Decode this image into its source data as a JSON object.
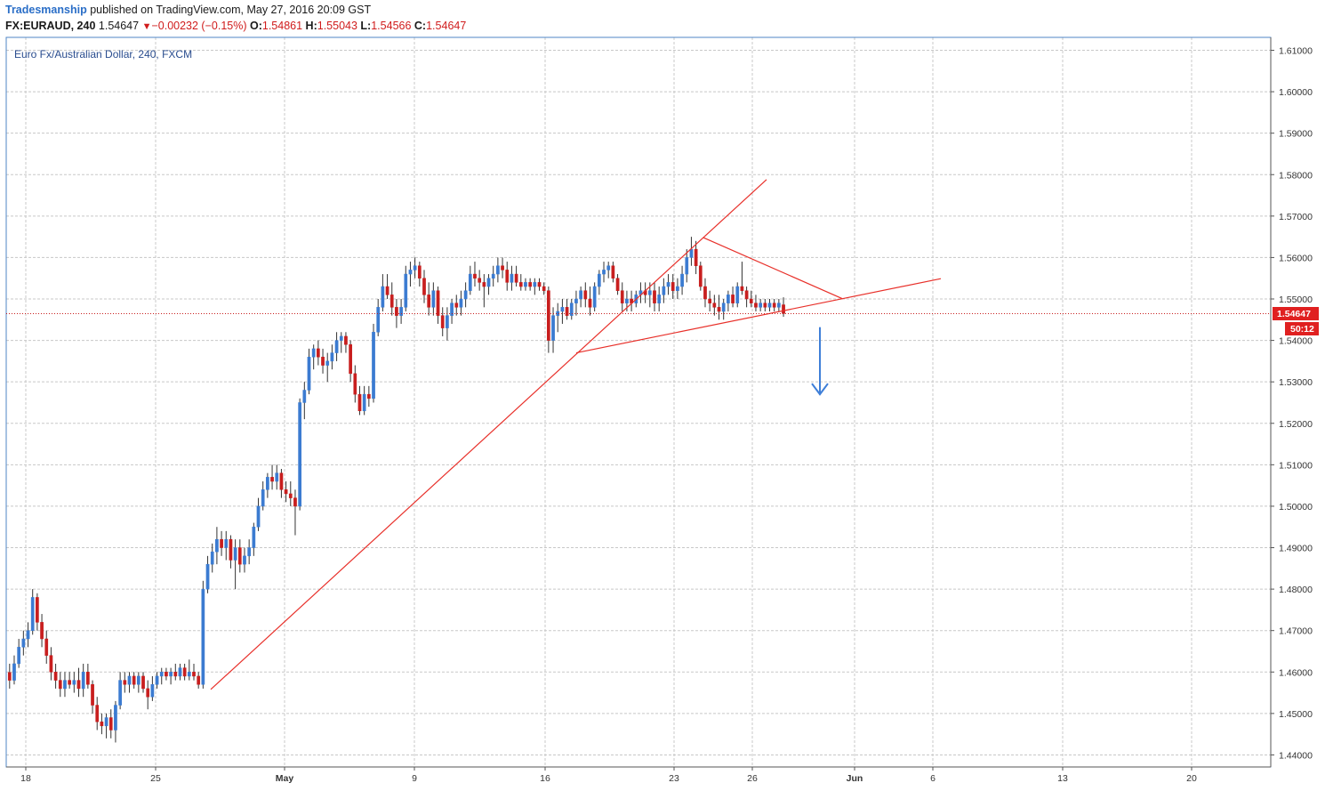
{
  "header": {
    "author": "Tradesmanship",
    "published_text": "published on TradingView.com, May 27, 2016 20:09 GST",
    "symbol_interval": "FX:EURAUD, 240",
    "last_price": "1.54647",
    "change": "−0.00232 (−0.15%)",
    "open_label": "O:",
    "open": "1.54861",
    "high_label": "H:",
    "high": "1.55043",
    "low_label": "L:",
    "low": "1.54566",
    "close_label": "C:",
    "close": "1.54647"
  },
  "pane_title": "Euro Fx/Australian Dollar, 240, FXCM",
  "price_tag": {
    "price": "1.54647",
    "countdown": "50:12"
  },
  "colors": {
    "up": "#3b7bd1",
    "down": "#c81e1e",
    "grid": "#c8c8c8",
    "trendline": "#e8302a",
    "arrow": "#3f7fd8",
    "price_line": "#c81e1e"
  },
  "chart_data": {
    "type": "candlestick",
    "symbol": "FX:EURAUD",
    "interval": "240",
    "y_ticks": [
      "1.61000",
      "1.60000",
      "1.59000",
      "1.58000",
      "1.57000",
      "1.56000",
      "1.55000",
      "1.54000",
      "1.53000",
      "1.52000",
      "1.51000",
      "1.50000",
      "1.49000",
      "1.48000",
      "1.47000",
      "1.46000",
      "1.45000",
      "1.44000"
    ],
    "ylim": [
      1.4385,
      1.6135
    ],
    "x_ticks": [
      "18",
      "25",
      "May",
      "9",
      "16",
      "23",
      "26",
      "Jun",
      "6",
      "13",
      "20"
    ],
    "candles": [
      [
        1.4599,
        1.462,
        1.456,
        1.458
      ],
      [
        1.458,
        1.464,
        1.457,
        1.462
      ],
      [
        1.462,
        1.468,
        1.461,
        1.466
      ],
      [
        1.466,
        1.47,
        1.464,
        1.468
      ],
      [
        1.468,
        1.472,
        1.466,
        1.47
      ],
      [
        1.47,
        1.48,
        1.469,
        1.478
      ],
      [
        1.478,
        1.479,
        1.47,
        1.472
      ],
      [
        1.472,
        1.474,
        1.466,
        1.468
      ],
      [
        1.468,
        1.47,
        1.462,
        1.464
      ],
      [
        1.464,
        1.466,
        1.458,
        1.46
      ],
      [
        1.46,
        1.462,
        1.456,
        1.458
      ],
      [
        1.458,
        1.46,
        1.454,
        1.456
      ],
      [
        1.456,
        1.46,
        1.454,
        1.458
      ],
      [
        1.458,
        1.46,
        1.456,
        1.457
      ],
      [
        1.457,
        1.46,
        1.455,
        1.458
      ],
      [
        1.458,
        1.461,
        1.454,
        1.456
      ],
      [
        1.456,
        1.462,
        1.454,
        1.46
      ],
      [
        1.46,
        1.462,
        1.456,
        1.457
      ],
      [
        1.457,
        1.458,
        1.45,
        1.452
      ],
      [
        1.452,
        1.454,
        1.446,
        1.448
      ],
      [
        1.448,
        1.45,
        1.445,
        1.447
      ],
      [
        1.447,
        1.45,
        1.444,
        1.449
      ],
      [
        1.449,
        1.451,
        1.444,
        1.446
      ],
      [
        1.446,
        1.453,
        1.443,
        1.452
      ],
      [
        1.452,
        1.46,
        1.451,
        1.458
      ],
      [
        1.458,
        1.46,
        1.455,
        1.457
      ],
      [
        1.457,
        1.46,
        1.455,
        1.459
      ],
      [
        1.459,
        1.46,
        1.456,
        1.457
      ],
      [
        1.457,
        1.46,
        1.455,
        1.459
      ],
      [
        1.459,
        1.46,
        1.455,
        1.456
      ],
      [
        1.456,
        1.458,
        1.451,
        1.454
      ],
      [
        1.454,
        1.459,
        1.453,
        1.457
      ],
      [
        1.457,
        1.46,
        1.456,
        1.459
      ],
      [
        1.459,
        1.461,
        1.457,
        1.46
      ],
      [
        1.46,
        1.461,
        1.458,
        1.459
      ],
      [
        1.459,
        1.461,
        1.457,
        1.46
      ],
      [
        1.46,
        1.462,
        1.458,
        1.459
      ],
      [
        1.459,
        1.462,
        1.458,
        1.461
      ],
      [
        1.461,
        1.462,
        1.458,
        1.459
      ],
      [
        1.459,
        1.463,
        1.458,
        1.46
      ],
      [
        1.46,
        1.462,
        1.458,
        1.459
      ],
      [
        1.459,
        1.46,
        1.456,
        1.457
      ],
      [
        1.457,
        1.482,
        1.456,
        1.48
      ],
      [
        1.48,
        1.488,
        1.479,
        1.486
      ],
      [
        1.486,
        1.491,
        1.484,
        1.489
      ],
      [
        1.489,
        1.495,
        1.486,
        1.492
      ],
      [
        1.492,
        1.494,
        1.488,
        1.49
      ],
      [
        1.49,
        1.494,
        1.487,
        1.492
      ],
      [
        1.492,
        1.493,
        1.485,
        1.487
      ],
      [
        1.487,
        1.492,
        1.48,
        1.49
      ],
      [
        1.49,
        1.492,
        1.484,
        1.486
      ],
      [
        1.486,
        1.49,
        1.484,
        1.488
      ],
      [
        1.488,
        1.492,
        1.486,
        1.49
      ],
      [
        1.49,
        1.496,
        1.488,
        1.495
      ],
      [
        1.495,
        1.502,
        1.494,
        1.5
      ],
      [
        1.5,
        1.506,
        1.499,
        1.504
      ],
      [
        1.504,
        1.508,
        1.502,
        1.507
      ],
      [
        1.507,
        1.51,
        1.504,
        1.506
      ],
      [
        1.506,
        1.51,
        1.504,
        1.508
      ],
      [
        1.508,
        1.509,
        1.502,
        1.504
      ],
      [
        1.504,
        1.506,
        1.501,
        1.503
      ],
      [
        1.503,
        1.506,
        1.5,
        1.502
      ],
      [
        1.502,
        1.504,
        1.493,
        1.5
      ],
      [
        1.5,
        1.526,
        1.499,
        1.525
      ],
      [
        1.525,
        1.53,
        1.521,
        1.528
      ],
      [
        1.528,
        1.538,
        1.527,
        1.536
      ],
      [
        1.536,
        1.539,
        1.533,
        1.538
      ],
      [
        1.538,
        1.54,
        1.534,
        1.536
      ],
      [
        1.536,
        1.538,
        1.532,
        1.534
      ],
      [
        1.534,
        1.537,
        1.53,
        1.535
      ],
      [
        1.535,
        1.539,
        1.533,
        1.537
      ],
      [
        1.537,
        1.542,
        1.535,
        1.54
      ],
      [
        1.54,
        1.542,
        1.537,
        1.541
      ],
      [
        1.541,
        1.542,
        1.537,
        1.539
      ],
      [
        1.539,
        1.54,
        1.53,
        1.532
      ],
      [
        1.532,
        1.534,
        1.525,
        1.527
      ],
      [
        1.527,
        1.529,
        1.522,
        1.523
      ],
      [
        1.523,
        1.529,
        1.522,
        1.527
      ],
      [
        1.527,
        1.529,
        1.524,
        1.526
      ],
      [
        1.526,
        1.544,
        1.525,
        1.542
      ],
      [
        1.542,
        1.55,
        1.541,
        1.548
      ],
      [
        1.548,
        1.556,
        1.547,
        1.553
      ],
      [
        1.553,
        1.556,
        1.55,
        1.551
      ],
      [
        1.551,
        1.554,
        1.546,
        1.548
      ],
      [
        1.548,
        1.55,
        1.543,
        1.546
      ],
      [
        1.546,
        1.55,
        1.544,
        1.548
      ],
      [
        1.548,
        1.558,
        1.547,
        1.556
      ],
      [
        1.556,
        1.559,
        1.553,
        1.557
      ],
      [
        1.557,
        1.56,
        1.555,
        1.558
      ],
      [
        1.558,
        1.559,
        1.553,
        1.555
      ],
      [
        1.555,
        1.557,
        1.549,
        1.551
      ],
      [
        1.551,
        1.554,
        1.546,
        1.548
      ],
      [
        1.548,
        1.554,
        1.546,
        1.552
      ],
      [
        1.552,
        1.553,
        1.544,
        1.546
      ],
      [
        1.546,
        1.548,
        1.541,
        1.543
      ],
      [
        1.543,
        1.548,
        1.54,
        1.546
      ],
      [
        1.546,
        1.55,
        1.544,
        1.549
      ],
      [
        1.549,
        1.551,
        1.546,
        1.548
      ],
      [
        1.548,
        1.552,
        1.546,
        1.55
      ],
      [
        1.55,
        1.554,
        1.548,
        1.552
      ],
      [
        1.552,
        1.558,
        1.551,
        1.556
      ],
      [
        1.556,
        1.559,
        1.553,
        1.555
      ],
      [
        1.555,
        1.557,
        1.552,
        1.554
      ],
      [
        1.554,
        1.556,
        1.548,
        1.553
      ],
      [
        1.553,
        1.556,
        1.551,
        1.555
      ],
      [
        1.555,
        1.558,
        1.553,
        1.556
      ],
      [
        1.556,
        1.56,
        1.554,
        1.558
      ],
      [
        1.558,
        1.56,
        1.555,
        1.557
      ],
      [
        1.557,
        1.559,
        1.552,
        1.554
      ],
      [
        1.554,
        1.558,
        1.552,
        1.556
      ],
      [
        1.556,
        1.558,
        1.553,
        1.554
      ],
      [
        1.554,
        1.556,
        1.552,
        1.553
      ],
      [
        1.553,
        1.555,
        1.552,
        1.554
      ],
      [
        1.554,
        1.555,
        1.552,
        1.553
      ],
      [
        1.553,
        1.555,
        1.551,
        1.554
      ],
      [
        1.554,
        1.555,
        1.552,
        1.553
      ],
      [
        1.553,
        1.554,
        1.551,
        1.552
      ],
      [
        1.552,
        1.553,
        1.537,
        1.54
      ],
      [
        1.54,
        1.548,
        1.537,
        1.546
      ],
      [
        1.546,
        1.549,
        1.542,
        1.547
      ],
      [
        1.547,
        1.55,
        1.544,
        1.548
      ],
      [
        1.548,
        1.55,
        1.545,
        1.546
      ],
      [
        1.546,
        1.55,
        1.545,
        1.549
      ],
      [
        1.549,
        1.552,
        1.546,
        1.55
      ],
      [
        1.55,
        1.553,
        1.548,
        1.552
      ],
      [
        1.552,
        1.554,
        1.548,
        1.55
      ],
      [
        1.55,
        1.553,
        1.546,
        1.548
      ],
      [
        1.548,
        1.554,
        1.547,
        1.553
      ],
      [
        1.553,
        1.557,
        1.551,
        1.556
      ],
      [
        1.556,
        1.559,
        1.554,
        1.557
      ],
      [
        1.557,
        1.559,
        1.555,
        1.558
      ],
      [
        1.558,
        1.559,
        1.554,
        1.555
      ],
      [
        1.555,
        1.556,
        1.551,
        1.552
      ],
      [
        1.552,
        1.554,
        1.547,
        1.549
      ],
      [
        1.549,
        1.552,
        1.547,
        1.55
      ],
      [
        1.55,
        1.552,
        1.547,
        1.549
      ],
      [
        1.549,
        1.552,
        1.548,
        1.551
      ],
      [
        1.551,
        1.554,
        1.549,
        1.552
      ],
      [
        1.552,
        1.554,
        1.549,
        1.551
      ],
      [
        1.551,
        1.554,
        1.548,
        1.552
      ],
      [
        1.552,
        1.554,
        1.547,
        1.549
      ],
      [
        1.549,
        1.553,
        1.547,
        1.551
      ],
      [
        1.551,
        1.555,
        1.549,
        1.553
      ],
      [
        1.553,
        1.556,
        1.551,
        1.554
      ],
      [
        1.554,
        1.556,
        1.55,
        1.552
      ],
      [
        1.552,
        1.555,
        1.55,
        1.553
      ],
      [
        1.553,
        1.558,
        1.551,
        1.556
      ],
      [
        1.556,
        1.562,
        1.554,
        1.56
      ],
      [
        1.56,
        1.565,
        1.558,
        1.562
      ],
      [
        1.562,
        1.564,
        1.556,
        1.558
      ],
      [
        1.558,
        1.559,
        1.552,
        1.553
      ],
      [
        1.553,
        1.555,
        1.548,
        1.55
      ],
      [
        1.55,
        1.552,
        1.547,
        1.549
      ],
      [
        1.549,
        1.551,
        1.546,
        1.548
      ],
      [
        1.548,
        1.551,
        1.545,
        1.547
      ],
      [
        1.547,
        1.55,
        1.545,
        1.549
      ],
      [
        1.549,
        1.552,
        1.547,
        1.551
      ],
      [
        1.551,
        1.553,
        1.548,
        1.549
      ],
      [
        1.549,
        1.554,
        1.548,
        1.553
      ],
      [
        1.553,
        1.559,
        1.551,
        1.552
      ],
      [
        1.552,
        1.553,
        1.548,
        1.55
      ],
      [
        1.55,
        1.552,
        1.548,
        1.549
      ],
      [
        1.549,
        1.551,
        1.547,
        1.548
      ],
      [
        1.548,
        1.55,
        1.547,
        1.549
      ],
      [
        1.549,
        1.55,
        1.547,
        1.548
      ],
      [
        1.548,
        1.55,
        1.547,
        1.549
      ],
      [
        1.549,
        1.55,
        1.547,
        1.548
      ],
      [
        1.548,
        1.55,
        1.547,
        1.549
      ],
      [
        1.5486,
        1.5504,
        1.5457,
        1.5465
      ]
    ],
    "annotations": [
      {
        "kind": "trendline",
        "from": {
          "date": "Apr 28",
          "price": 1.4558
        },
        "to": {
          "date": "May 25",
          "price": 1.5788
        }
      },
      {
        "kind": "trendline",
        "from": {
          "date": "May 17",
          "price": 1.537
        },
        "to": {
          "date": "Jun 5",
          "price": 1.5549
        }
      },
      {
        "kind": "trendline",
        "from": {
          "date": "May 24",
          "price": 1.5648
        },
        "to": {
          "date": "May 31",
          "price": 1.5501
        }
      },
      {
        "kind": "arrow",
        "direction": "down",
        "from_price": 1.5432,
        "to_price": 1.527
      }
    ]
  }
}
